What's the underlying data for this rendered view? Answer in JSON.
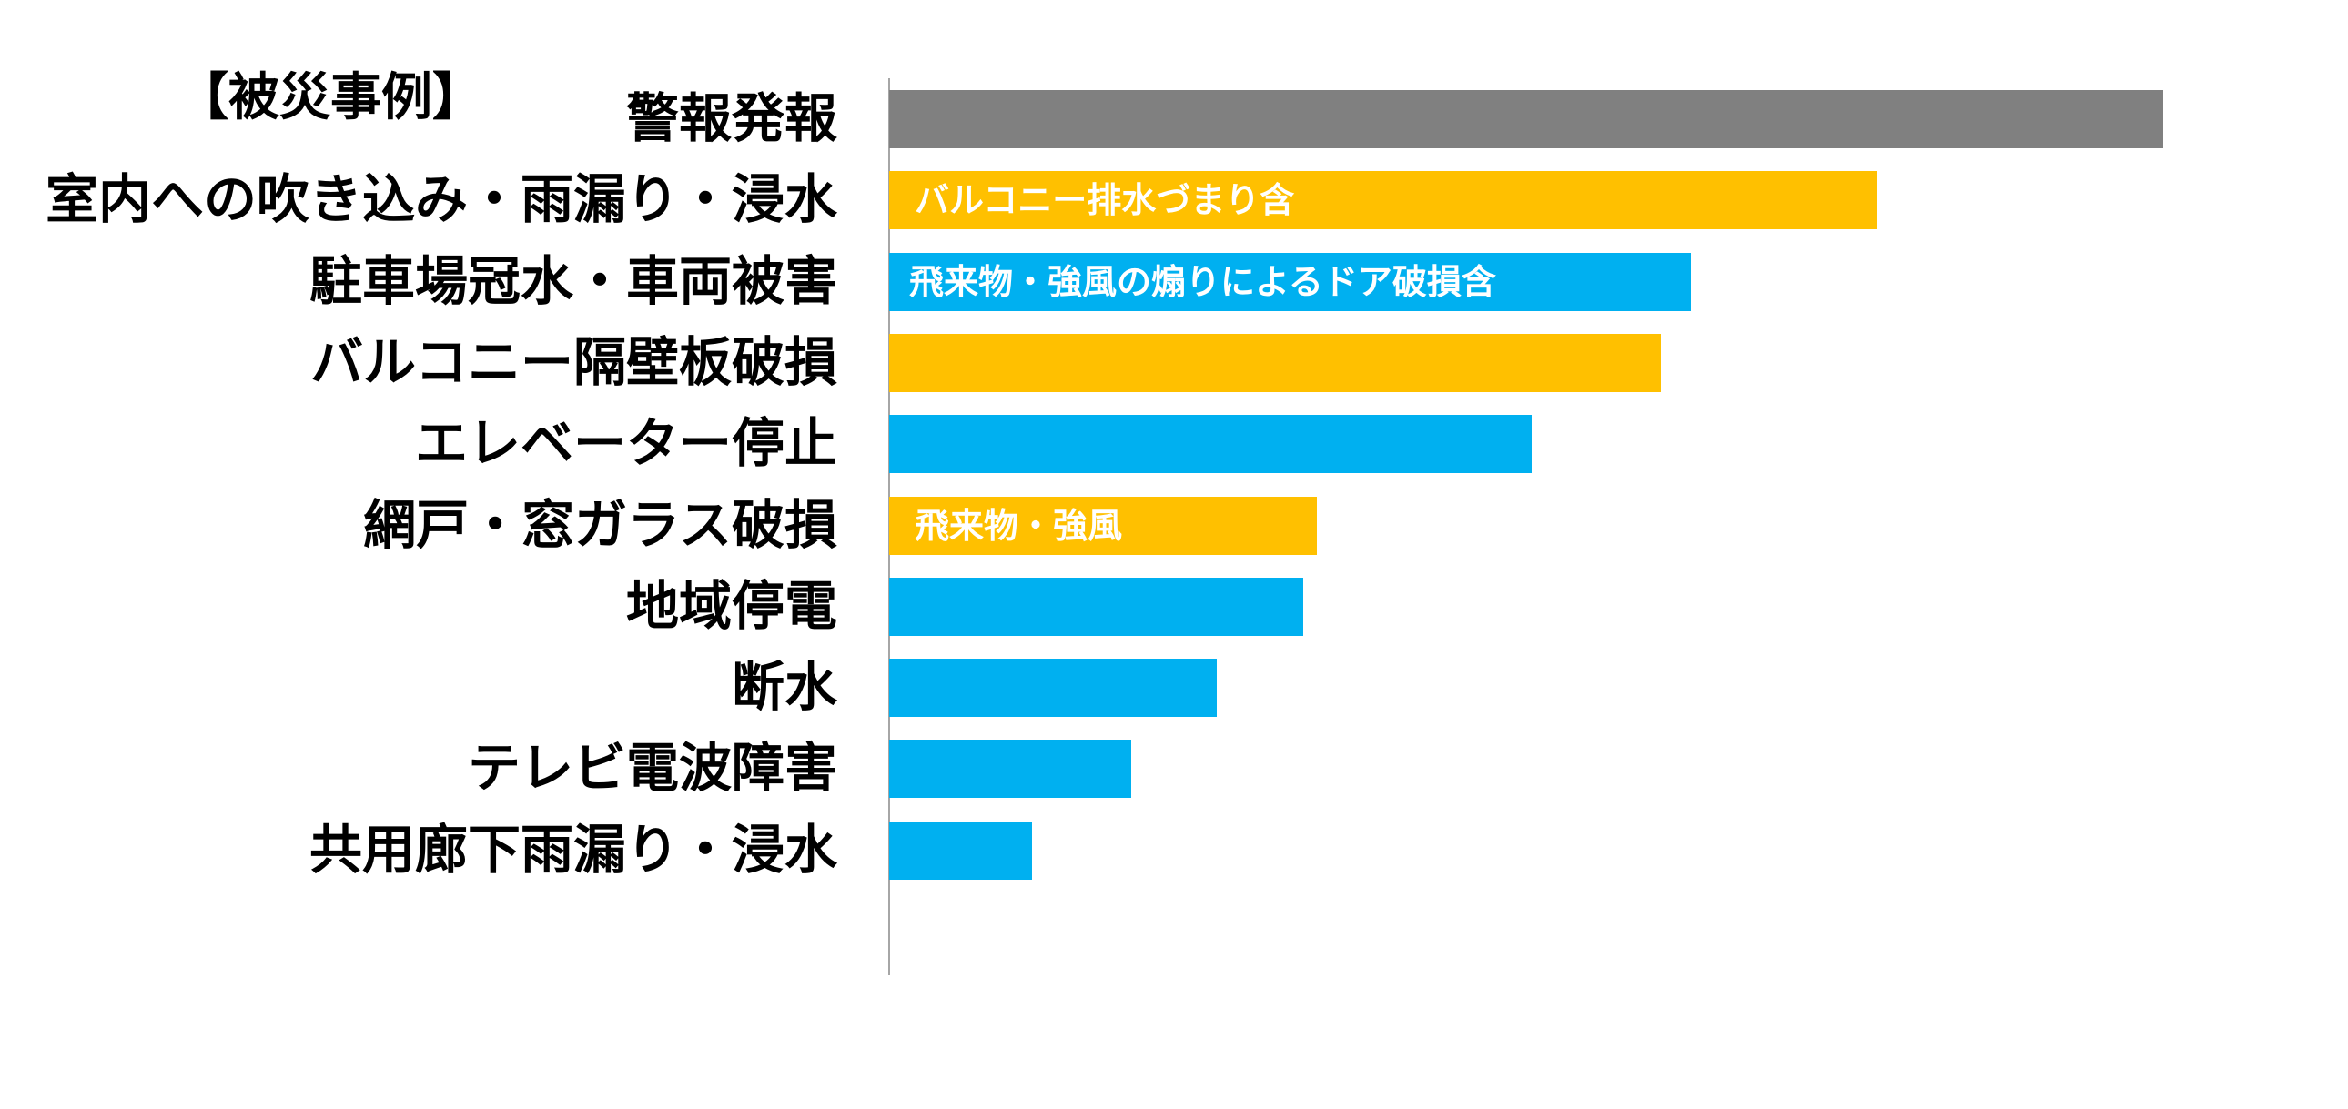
{
  "chart_data": {
    "type": "bar",
    "orientation": "horizontal",
    "title": "【被災事例】",
    "xlabel": "",
    "ylabel": "",
    "value_unit": "percent of longest bar (no axis values printed)",
    "xlim": [
      0,
      100
    ],
    "grid": false,
    "legend": "none",
    "categories": [
      "警報発報",
      "室内への吹き込み・雨漏り・浸水",
      "駐車場冠水・車両被害",
      "バルコニー隔壁板破損",
      "エレベーター停止",
      "網戸・窓ガラス破損",
      "地域停電",
      "断水",
      "テレビ電波障害",
      "共用廊下雨漏り・浸水"
    ],
    "values": [
      100,
      77.5,
      62.9,
      60.6,
      50.4,
      33.6,
      32.5,
      25.7,
      19.0,
      11.2
    ],
    "colors": [
      "#808080",
      "#FFC000",
      "#00B0F0",
      "#FFC000",
      "#00B0F0",
      "#FFC000",
      "#00B0F0",
      "#00B0F0",
      "#00B0F0",
      "#00B0F0"
    ],
    "annotations": [
      "",
      "バルコニー排水づまり含",
      "飛来物・強風の煽りによるドア破損含",
      "",
      "",
      "飛来物・強風",
      "",
      "",
      "",
      ""
    ]
  }
}
